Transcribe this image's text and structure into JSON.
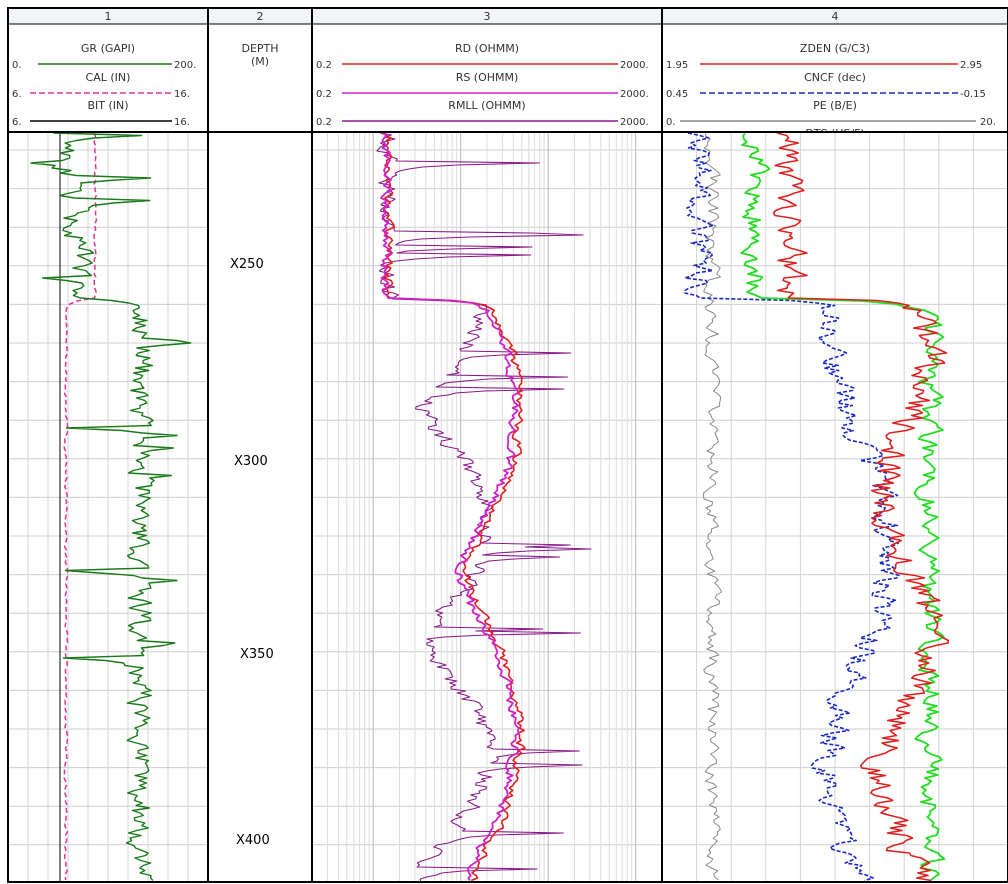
{
  "tracks": [
    {
      "num": "1"
    },
    {
      "num": "2",
      "title": "DEPTH",
      "unit": "(M)"
    },
    {
      "num": "3"
    },
    {
      "num": "4"
    }
  ],
  "curves": {
    "gr": {
      "name": "GR (GAPI)",
      "min": "0.",
      "max": "200.",
      "color": "#1a7a1a",
      "style": "solid"
    },
    "cal": {
      "name": "CAL (IN)",
      "min": "6.",
      "max": "16.",
      "color": "#e0339a",
      "style": "dashed"
    },
    "bit": {
      "name": "BIT (IN)",
      "min": "6.",
      "max": "16.",
      "color": "#000000",
      "style": "solid"
    },
    "rd": {
      "name": "RD (OHMM)",
      "min": "0.2",
      "max": "2000.",
      "color": "#e02020",
      "style": "solid"
    },
    "rs": {
      "name": "RS (OHMM)",
      "min": "0.2",
      "max": "2000.",
      "color": "#d020c8",
      "style": "solid"
    },
    "rmll": {
      "name": "RMLL (OHMM)",
      "min": "0.2",
      "max": "2000.",
      "color": "#8a1a8a",
      "style": "solid"
    },
    "zden": {
      "name": "ZDEN (G/C3)",
      "min": "1.95",
      "max": "2.95",
      "color": "#e02020",
      "style": "solid"
    },
    "cncf": {
      "name": "CNCF (dec)",
      "min": "0.45",
      "max": "-0.15",
      "color": "#1a2ac0",
      "style": "dashed"
    },
    "pe": {
      "name": "PE (B/E)",
      "min": "0.",
      "max": "20.",
      "color": "#8a8a8a",
      "style": "solid"
    },
    "dtc": {
      "name": "DTC (US/F)",
      "color": "#22dd22",
      "style": "solid"
    }
  },
  "depth_labels": [
    "X250",
    "X300",
    "X350",
    "X400"
  ],
  "chart_data": {
    "type": "line",
    "title": "",
    "depth_axis": {
      "label": "DEPTH",
      "unit": "(M)",
      "ticks": [
        "X250",
        "X300",
        "X350",
        "X400"
      ]
    },
    "tracks": [
      {
        "track": "1",
        "scale": "linear",
        "series": [
          {
            "name": "GR (GAPI)",
            "range": [
              0,
              200
            ],
            "profile": "low 35-75 above X250, high 110-195 with sharp spikes from ~X262 downward"
          },
          {
            "name": "CAL (IN)",
            "range": [
              6,
              16
            ],
            "profile": "~9.3 above X262, ~6.7-7.2 below"
          },
          {
            "name": "BIT (IN)",
            "range": [
              6,
              16
            ],
            "profile": "constant ~8.5"
          }
        ]
      },
      {
        "track": "3",
        "scale": "log",
        "series": [
          {
            "name": "RD (OHMM)",
            "range": [
              0.2,
              2000
            ],
            "profile": "~1.5 above X262, rising to 10-300 below"
          },
          {
            "name": "RS (OHMM)",
            "range": [
              0.2,
              2000
            ],
            "profile": "follows RD closely"
          },
          {
            "name": "RMLL (OHMM)",
            "range": [
              0.2,
              2000
            ],
            "profile": "noisy, frequent spikes toward 1000-2000 below X262"
          }
        ]
      },
      {
        "track": "4",
        "scale": "linear",
        "series": [
          {
            "name": "ZDEN (G/C3)",
            "range": [
              1.95,
              2.95
            ],
            "profile": "~2.3 above X262, ~2.6-2.9 below"
          },
          {
            "name": "CNCF (dec)",
            "range": [
              0.45,
              -0.15
            ],
            "profile": "~0.42 above X262, ~0.2-0.25 below"
          },
          {
            "name": "PE (B/E)",
            "range": [
              0,
              20
            ],
            "profile": "~2-4 throughout"
          },
          {
            "name": "DTC (US/F)",
            "profile": "toward left above X262, shifting right below"
          }
        ]
      }
    ]
  }
}
